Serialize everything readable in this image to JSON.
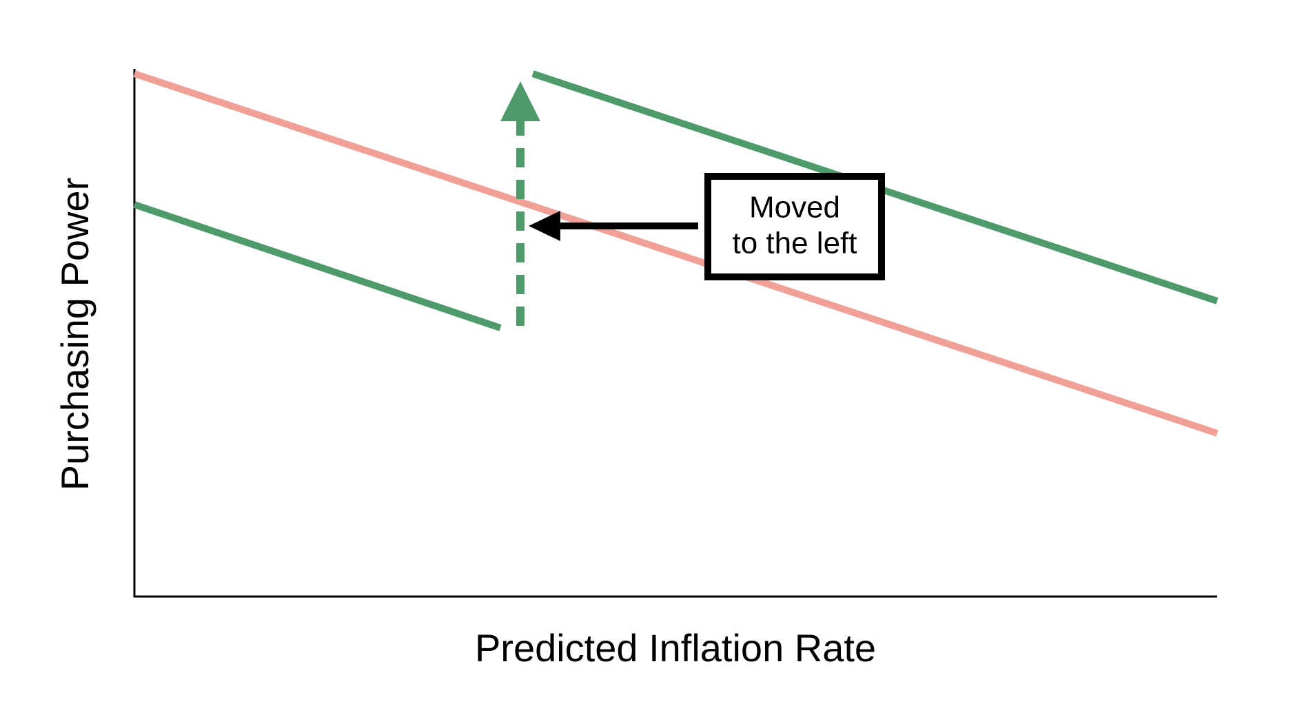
{
  "axes": {
    "x_label": "Predicted Inflation Rate",
    "y_label": "Purchasing Power"
  },
  "annotation": {
    "lines": [
      "Moved",
      "to the left"
    ]
  }
}
